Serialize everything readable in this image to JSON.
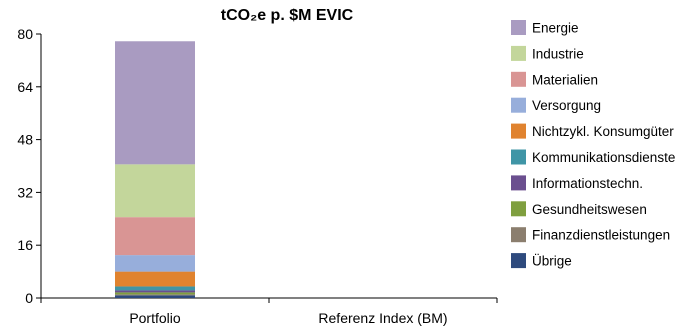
{
  "chart_data": {
    "type": "bar",
    "stacked": true,
    "title": "tCO₂e p. $M EVIC",
    "xlabel": "",
    "ylabel": "",
    "categories": [
      "Portfolio",
      "Referenz Index (BM)"
    ],
    "ylim": [
      0,
      80
    ],
    "yticks": [
      0,
      16,
      32,
      48,
      64,
      80
    ],
    "grid": false,
    "legend_position": "right",
    "series": [
      {
        "name": "Übrige",
        "color": "#2e4a7d",
        "values": [
          0.8,
          0
        ]
      },
      {
        "name": "Finanzdienstleistungen",
        "color": "#8b7e6e",
        "values": [
          0.3,
          0
        ]
      },
      {
        "name": "Gesundheitswesen",
        "color": "#7f9f3f",
        "values": [
          0.6,
          0
        ]
      },
      {
        "name": "Informationstechn.",
        "color": "#6b4f8f",
        "values": [
          0.6,
          0
        ]
      },
      {
        "name": "Kommunikationsdienste",
        "color": "#3f95a6",
        "values": [
          1.2,
          0
        ]
      },
      {
        "name": "Nichtzykl. Konsumgüter",
        "color": "#e0832f",
        "values": [
          4.5,
          0
        ]
      },
      {
        "name": "Versorgung",
        "color": "#97aedb",
        "values": [
          5.0,
          0
        ]
      },
      {
        "name": "Materialien",
        "color": "#d99594",
        "values": [
          11.5,
          0
        ]
      },
      {
        "name": "Industrie",
        "color": "#c3d69b",
        "values": [
          16.0,
          0
        ]
      },
      {
        "name": "Energie",
        "color": "#a99bc1",
        "values": [
          37.3,
          0
        ]
      }
    ]
  }
}
